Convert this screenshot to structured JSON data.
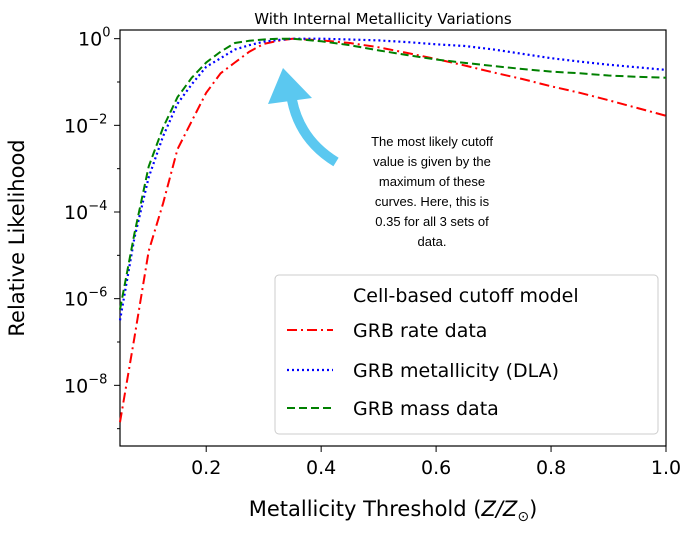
{
  "colors": {
    "rate": "#ff0000",
    "dla": "#0000ff",
    "mass": "#008000",
    "arrow": "#5bc8f0"
  },
  "chart_data": {
    "type": "line",
    "title": "With Internal Metallicity Variations",
    "xlabel_prefix": "Metallicity Threshold (",
    "xlabel_var": "Z/Z",
    "xlabel_sub": "⊙",
    "xlabel_suffix": ")",
    "ylabel": "Relative Likelihood",
    "xlim": [
      0.05,
      1.0
    ],
    "ylim_log10": [
      -9.4,
      0.2
    ],
    "y_scale": "log",
    "x_ticks": [
      "0.2",
      "0.4",
      "0.6",
      "0.8",
      "1.0"
    ],
    "y_ticks": [
      {
        "base": "10",
        "exp": "0"
      },
      {
        "base": "10",
        "exp": "−2"
      },
      {
        "base": "10",
        "exp": "−4"
      },
      {
        "base": "10",
        "exp": "−6"
      },
      {
        "base": "10",
        "exp": "−8"
      }
    ],
    "legend": {
      "title": "Cell-based cutoff model",
      "placement": "lower-right",
      "entries": [
        "GRB rate data",
        "GRB metallicity (DLA)",
        "GRB mass data"
      ]
    },
    "series": [
      {
        "name": "GRB rate data",
        "style": "dashdot",
        "x": [
          0.05,
          0.075,
          0.1,
          0.125,
          0.15,
          0.175,
          0.2,
          0.225,
          0.25,
          0.275,
          0.3,
          0.325,
          0.35,
          0.375,
          0.4,
          0.45,
          0.5,
          0.55,
          0.6,
          0.65,
          0.7,
          0.75,
          0.8,
          0.85,
          0.9,
          0.95,
          1.0
        ],
        "log10_y": [
          -8.85,
          -6.9,
          -4.9,
          -3.8,
          -2.55,
          -1.9,
          -1.25,
          -0.8,
          -0.55,
          -0.3,
          -0.12,
          -0.05,
          0.0,
          -0.02,
          -0.04,
          -0.1,
          -0.2,
          -0.33,
          -0.47,
          -0.62,
          -0.78,
          -0.93,
          -1.1,
          -1.25,
          -1.42,
          -1.6,
          -1.78
        ]
      },
      {
        "name": "GRB metallicity (DLA)",
        "style": "dotted",
        "x": [
          0.05,
          0.075,
          0.1,
          0.125,
          0.15,
          0.175,
          0.2,
          0.225,
          0.25,
          0.275,
          0.3,
          0.325,
          0.35,
          0.375,
          0.4,
          0.45,
          0.5,
          0.55,
          0.6,
          0.65,
          0.7,
          0.75,
          0.8,
          0.85,
          0.9,
          0.95,
          1.0
        ],
        "log10_y": [
          -6.5,
          -4.6,
          -3.2,
          -2.25,
          -1.5,
          -1.05,
          -0.65,
          -0.45,
          -0.25,
          -0.15,
          -0.07,
          -0.03,
          0.0,
          0.0,
          0.0,
          -0.02,
          -0.04,
          -0.08,
          -0.13,
          -0.17,
          -0.25,
          -0.35,
          -0.45,
          -0.53,
          -0.6,
          -0.66,
          -0.72
        ]
      },
      {
        "name": "GRB mass data",
        "style": "dashed",
        "x": [
          0.05,
          0.075,
          0.1,
          0.125,
          0.15,
          0.175,
          0.2,
          0.225,
          0.25,
          0.275,
          0.3,
          0.325,
          0.35,
          0.375,
          0.4,
          0.45,
          0.5,
          0.55,
          0.6,
          0.65,
          0.7,
          0.75,
          0.8,
          0.85,
          0.9,
          0.95,
          1.0
        ],
        "log10_y": [
          -6.25,
          -4.5,
          -2.95,
          -2.05,
          -1.35,
          -0.9,
          -0.55,
          -0.3,
          -0.1,
          -0.05,
          -0.02,
          0.0,
          0.0,
          -0.03,
          -0.06,
          -0.15,
          -0.27,
          -0.38,
          -0.48,
          -0.56,
          -0.63,
          -0.7,
          -0.76,
          -0.8,
          -0.85,
          -0.88,
          -0.9
        ]
      }
    ],
    "annotation": {
      "lines": [
        "The most likely cutoff",
        "value is given by the",
        "maximum of these",
        "curves. Here, this is",
        "0.35 for all 3 sets of",
        "data."
      ]
    }
  }
}
